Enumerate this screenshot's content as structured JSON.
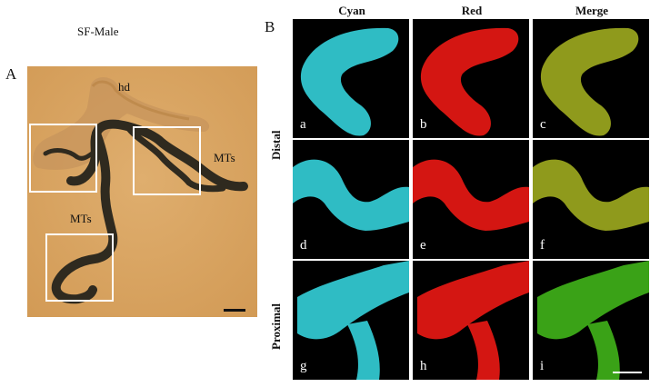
{
  "figure": {
    "part_a_title": "SF-Male",
    "part_a_label": "A",
    "part_b_label": "B",
    "photo_labels": {
      "hd": "hd",
      "mts_right": "MTs",
      "mts_left": "MTs"
    },
    "columns": [
      "Cyan",
      "Red",
      "Merge"
    ],
    "row_labels": {
      "distal": "Distal",
      "proximal": "Proximal"
    },
    "panel_letters": [
      "a",
      "b",
      "c",
      "d",
      "e",
      "f",
      "g",
      "h",
      "i"
    ],
    "colors": {
      "cyan": "#2fbcc4",
      "red": "#d41612",
      "merge": "#8f9a1c",
      "merge_green": "#3aa217",
      "photo_bg": "#d7a464",
      "tubule": "#2f2a1f"
    }
  }
}
